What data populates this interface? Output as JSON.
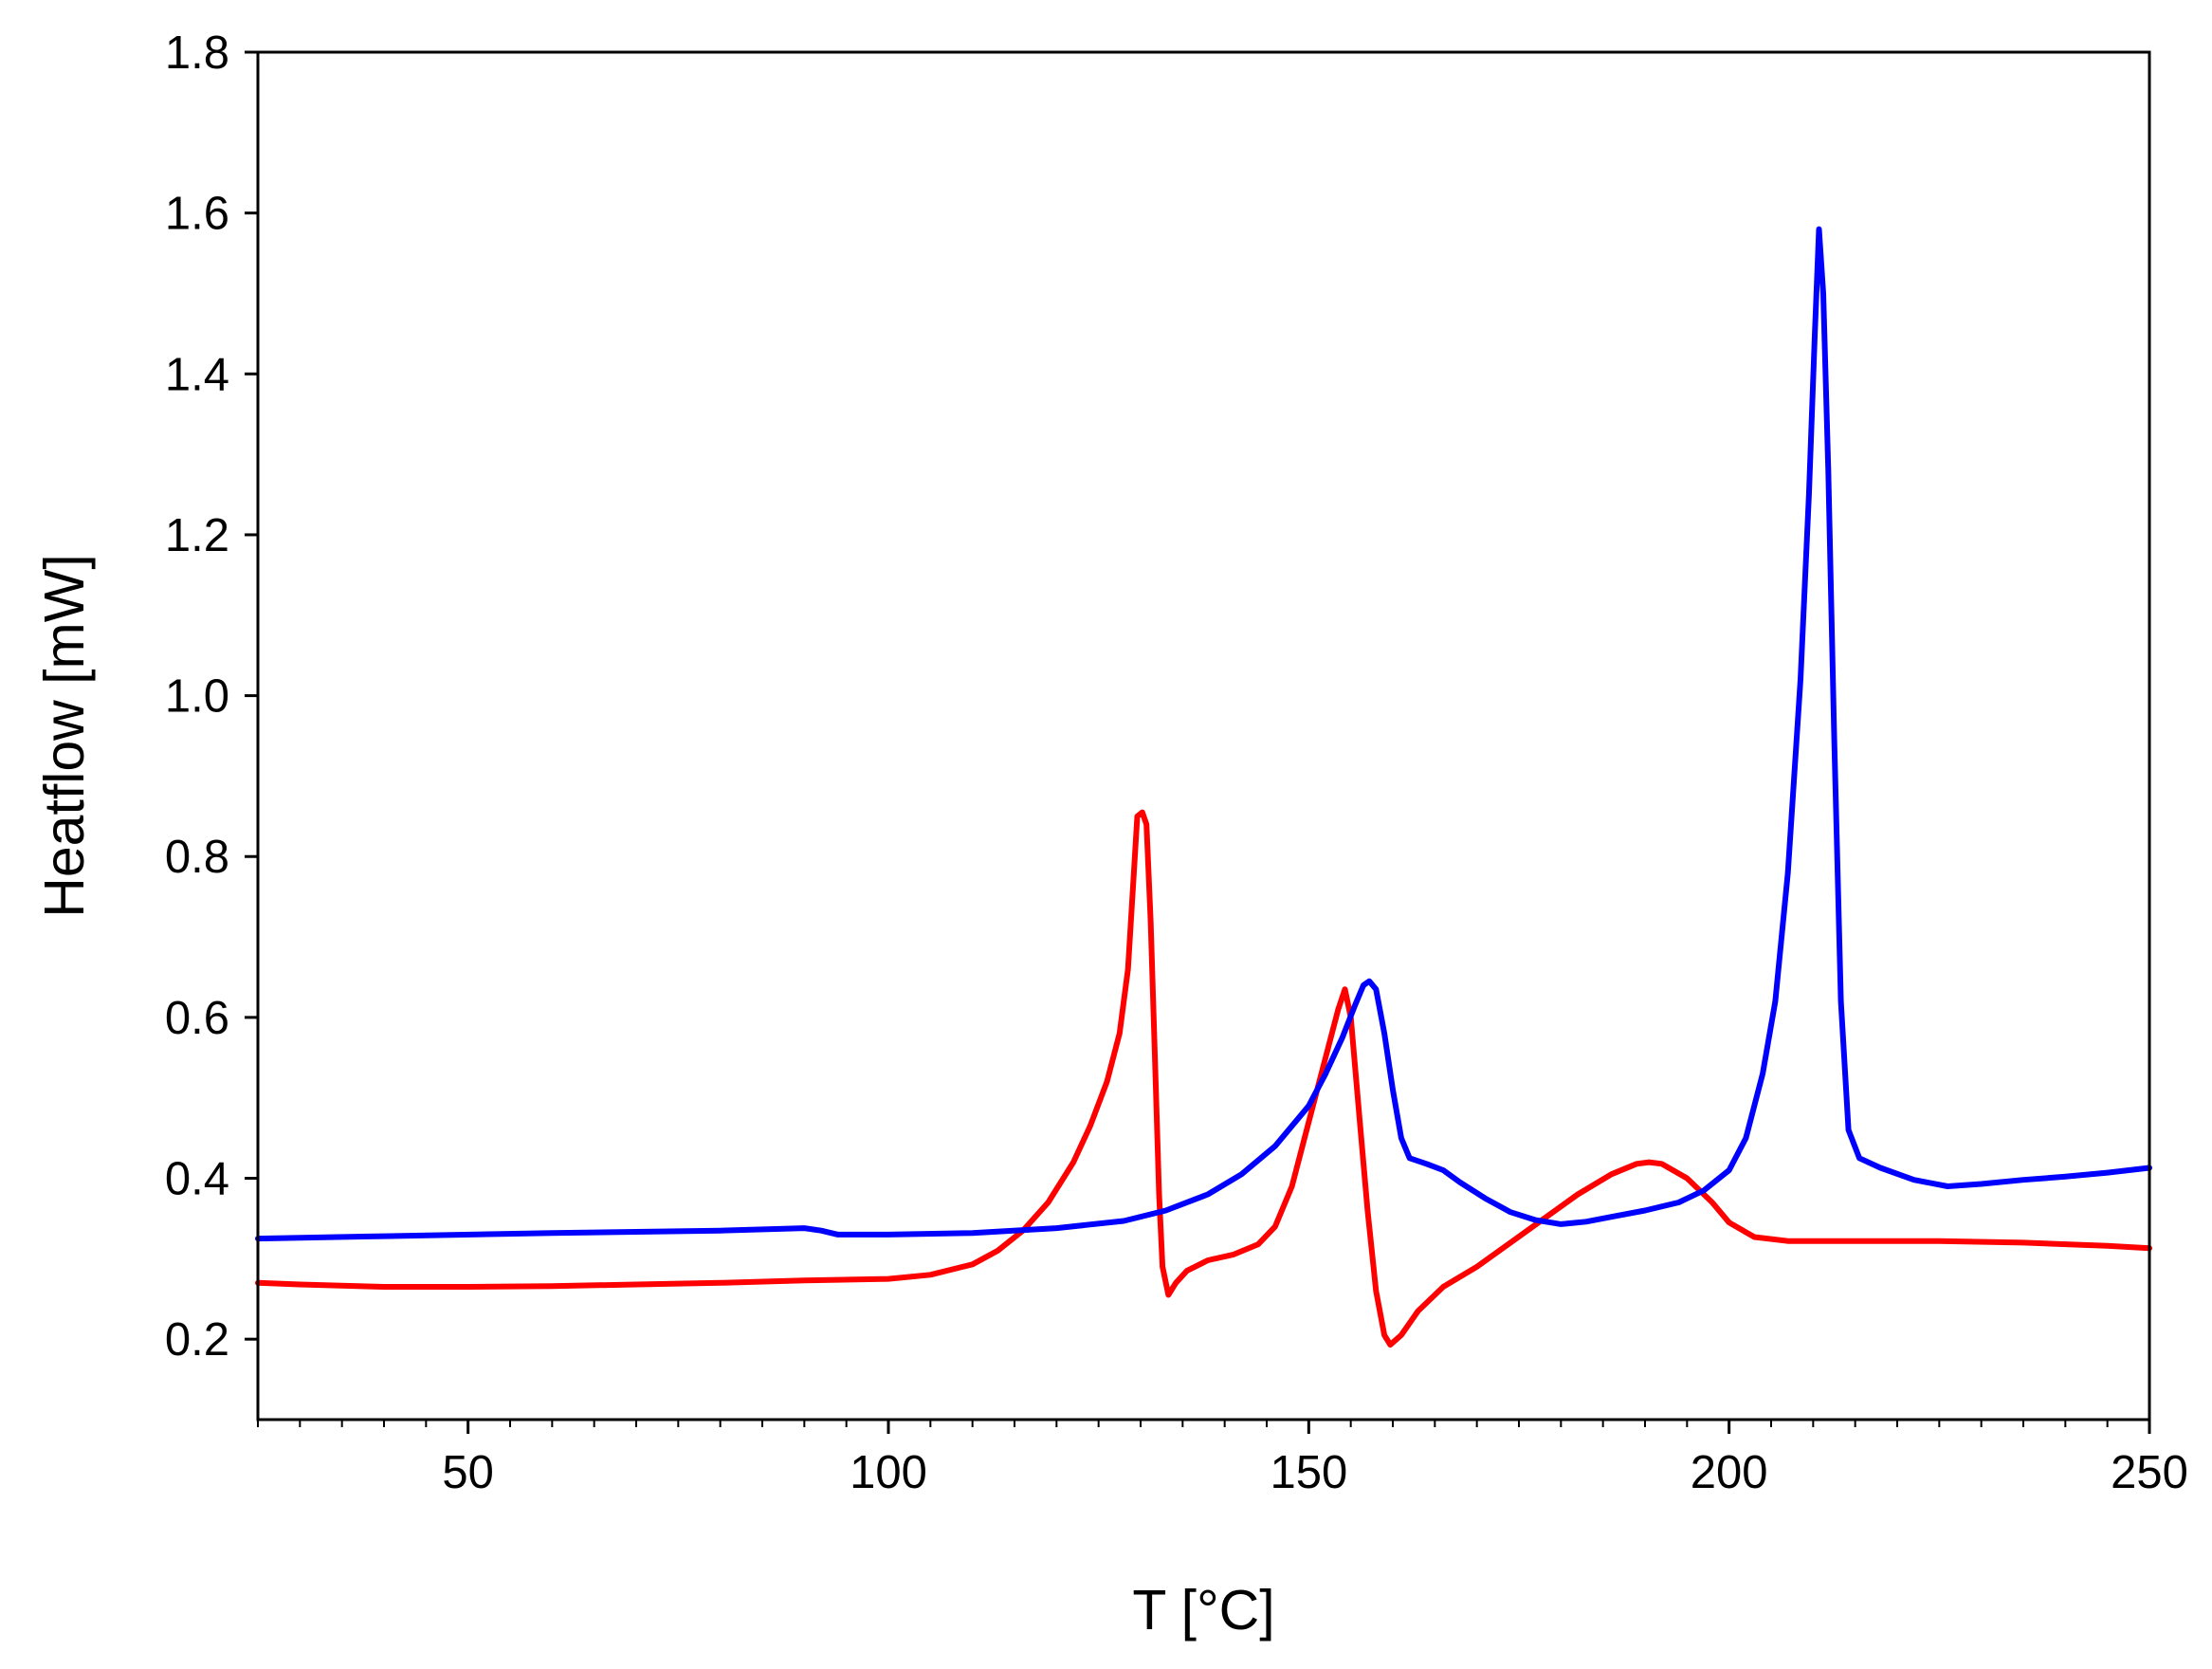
{
  "chart_data": {
    "type": "line",
    "xlabel": "T [°C]",
    "ylabel": "Heatflow [mW]",
    "xlim": [
      25,
      250
    ],
    "ylim": [
      0.1,
      1.8
    ],
    "x_ticks": [
      50,
      100,
      150,
      200,
      250
    ],
    "x_tick_labels": [
      "50",
      "100",
      "150",
      "200",
      "250"
    ],
    "x_minor_step": 5,
    "y_ticks": [
      0.2,
      0.4,
      0.6,
      0.8,
      1.0,
      1.2,
      1.4,
      1.6,
      1.8
    ],
    "y_tick_labels": [
      "0.2",
      "0.4",
      "0.6",
      "0.8",
      "1.0",
      "1.2",
      "1.4",
      "1.6",
      "1.8"
    ],
    "grid": false,
    "legend": "none",
    "series": [
      {
        "color": "#ff0000",
        "points": [
          [
            25,
            0.27
          ],
          [
            30,
            0.268
          ],
          [
            40,
            0.265
          ],
          [
            50,
            0.265
          ],
          [
            60,
            0.266
          ],
          [
            70,
            0.268
          ],
          [
            80,
            0.27
          ],
          [
            90,
            0.273
          ],
          [
            100,
            0.275
          ],
          [
            105,
            0.28
          ],
          [
            110,
            0.293
          ],
          [
            113,
            0.31
          ],
          [
            116,
            0.335
          ],
          [
            119,
            0.37
          ],
          [
            122,
            0.42
          ],
          [
            124,
            0.465
          ],
          [
            126,
            0.52
          ],
          [
            127.5,
            0.58
          ],
          [
            128.5,
            0.66
          ],
          [
            129.2,
            0.78
          ],
          [
            129.6,
            0.85
          ],
          [
            130.2,
            0.855
          ],
          [
            130.7,
            0.84
          ],
          [
            131.2,
            0.72
          ],
          [
            131.7,
            0.55
          ],
          [
            132.2,
            0.38
          ],
          [
            132.6,
            0.29
          ],
          [
            133.3,
            0.255
          ],
          [
            134.2,
            0.27
          ],
          [
            135.5,
            0.285
          ],
          [
            138,
            0.298
          ],
          [
            141,
            0.305
          ],
          [
            144,
            0.318
          ],
          [
            146,
            0.34
          ],
          [
            148,
            0.39
          ],
          [
            150,
            0.47
          ],
          [
            152,
            0.55
          ],
          [
            153.5,
            0.61
          ],
          [
            154.3,
            0.635
          ],
          [
            155,
            0.6
          ],
          [
            156,
            0.48
          ],
          [
            157,
            0.36
          ],
          [
            158,
            0.26
          ],
          [
            159,
            0.205
          ],
          [
            159.7,
            0.193
          ],
          [
            161,
            0.205
          ],
          [
            163,
            0.235
          ],
          [
            166,
            0.265
          ],
          [
            170,
            0.29
          ],
          [
            174,
            0.32
          ],
          [
            178,
            0.35
          ],
          [
            182,
            0.38
          ],
          [
            186,
            0.405
          ],
          [
            189,
            0.418
          ],
          [
            190.5,
            0.42
          ],
          [
            192,
            0.418
          ],
          [
            195,
            0.4
          ],
          [
            198,
            0.37
          ],
          [
            200,
            0.345
          ],
          [
            203,
            0.327
          ],
          [
            207,
            0.322
          ],
          [
            215,
            0.322
          ],
          [
            225,
            0.322
          ],
          [
            235,
            0.32
          ],
          [
            245,
            0.316
          ],
          [
            250,
            0.313
          ]
        ]
      },
      {
        "color": "#0000ff",
        "points": [
          [
            25,
            0.325
          ],
          [
            40,
            0.328
          ],
          [
            60,
            0.332
          ],
          [
            80,
            0.335
          ],
          [
            90,
            0.338
          ],
          [
            92,
            0.335
          ],
          [
            94,
            0.33
          ],
          [
            100,
            0.33
          ],
          [
            110,
            0.332
          ],
          [
            120,
            0.338
          ],
          [
            128,
            0.347
          ],
          [
            133,
            0.36
          ],
          [
            138,
            0.38
          ],
          [
            142,
            0.405
          ],
          [
            146,
            0.44
          ],
          [
            150,
            0.49
          ],
          [
            152,
            0.53
          ],
          [
            154,
            0.575
          ],
          [
            155.5,
            0.615
          ],
          [
            156.5,
            0.64
          ],
          [
            157.2,
            0.645
          ],
          [
            158,
            0.635
          ],
          [
            159,
            0.58
          ],
          [
            160,
            0.51
          ],
          [
            161,
            0.45
          ],
          [
            162,
            0.425
          ],
          [
            164,
            0.418
          ],
          [
            166,
            0.41
          ],
          [
            168,
            0.395
          ],
          [
            171,
            0.375
          ],
          [
            174,
            0.358
          ],
          [
            177,
            0.348
          ],
          [
            180,
            0.343
          ],
          [
            183,
            0.346
          ],
          [
            186,
            0.352
          ],
          [
            190,
            0.36
          ],
          [
            194,
            0.37
          ],
          [
            197,
            0.385
          ],
          [
            200,
            0.41
          ],
          [
            202,
            0.45
          ],
          [
            204,
            0.53
          ],
          [
            205.5,
            0.62
          ],
          [
            207,
            0.78
          ],
          [
            208.5,
            1.02
          ],
          [
            209.5,
            1.25
          ],
          [
            210.2,
            1.45
          ],
          [
            210.7,
            1.58
          ],
          [
            211.2,
            1.5
          ],
          [
            211.8,
            1.28
          ],
          [
            212.5,
            0.95
          ],
          [
            213.3,
            0.62
          ],
          [
            214.2,
            0.46
          ],
          [
            215.5,
            0.425
          ],
          [
            218,
            0.413
          ],
          [
            222,
            0.398
          ],
          [
            226,
            0.39
          ],
          [
            230,
            0.393
          ],
          [
            235,
            0.398
          ],
          [
            240,
            0.402
          ],
          [
            245,
            0.407
          ],
          [
            250,
            0.413
          ]
        ]
      }
    ]
  }
}
